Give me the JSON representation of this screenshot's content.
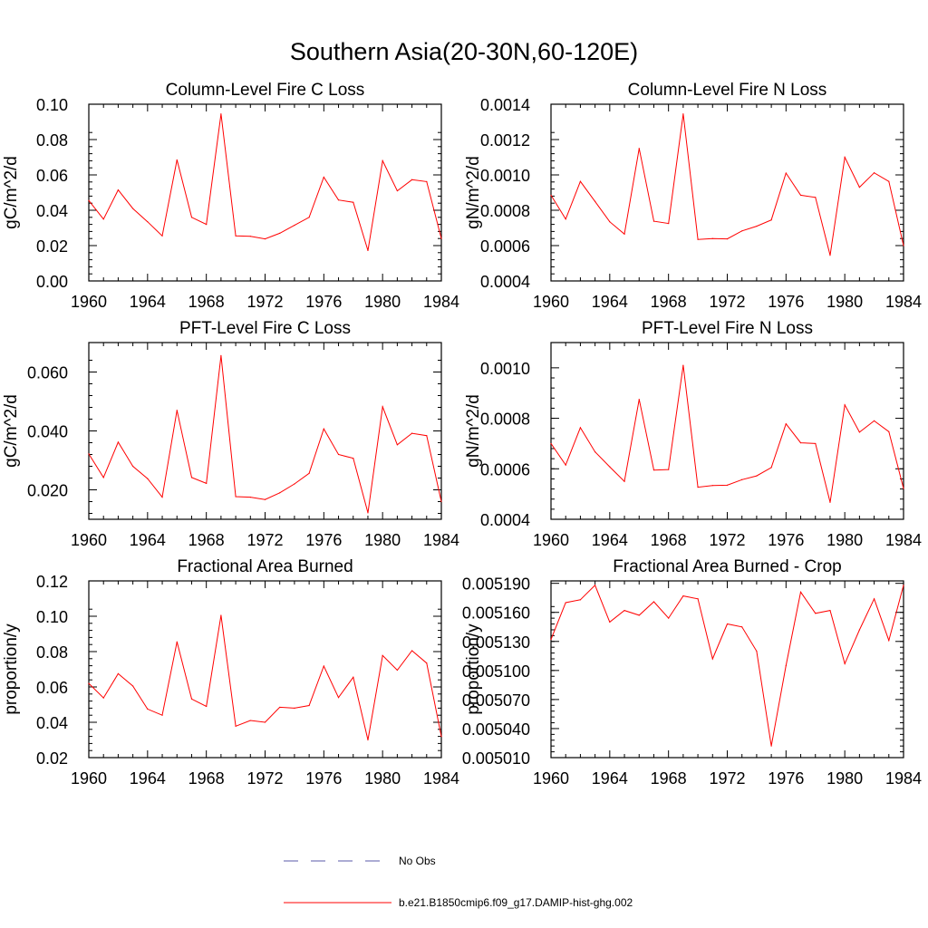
{
  "figure_title": "Southern Asia(20-30N,60-120E)",
  "legend": {
    "items": [
      {
        "label": "No Obs",
        "color": "#5a5aaa",
        "style": "dashed"
      },
      {
        "label": "b.e21.B1850cmip6.f09_g17.DAMIP-hist-ghg.002",
        "color": "#ff0000",
        "style": "solid"
      }
    ]
  },
  "chart_data": [
    {
      "type": "line",
      "title": "Column-Level Fire C Loss",
      "ylabel": "gC/m^2/d",
      "xlim": [
        1960,
        1984
      ],
      "ylim": [
        0,
        0.1
      ],
      "xticks": [
        "1960",
        "1964",
        "1968",
        "1972",
        "1976",
        "1980",
        "1984"
      ],
      "yticks": [
        "0.00",
        "0.02",
        "0.04",
        "0.06",
        "0.08",
        "0.10"
      ],
      "series": [
        {
          "color": "#ff0000",
          "x": [
            1960,
            1961,
            1962,
            1963,
            1964,
            1965,
            1966,
            1967,
            1968,
            1969,
            1970,
            1971,
            1972,
            1973,
            1974,
            1975,
            1976,
            1977,
            1978,
            1979,
            1980,
            1981,
            1982,
            1983,
            1984
          ],
          "y": [
            0.0455,
            0.035,
            0.0515,
            0.041,
            0.0335,
            0.0255,
            0.0685,
            0.036,
            0.032,
            0.0945,
            0.0255,
            0.0253,
            0.0238,
            0.027,
            0.0315,
            0.036,
            0.0587,
            0.0458,
            0.0445,
            0.0172,
            0.068,
            0.051,
            0.0573,
            0.0562,
            0.024
          ]
        }
      ]
    },
    {
      "type": "line",
      "title": "Column-Level Fire N Loss",
      "ylabel": "gN/m^2/d",
      "xlim": [
        1960,
        1984
      ],
      "ylim": [
        0.0004,
        0.0014
      ],
      "xticks": [
        "1960",
        "1964",
        "1968",
        "1972",
        "1976",
        "1980",
        "1984"
      ],
      "yticks": [
        "0.0004",
        "0.0006",
        "0.0008",
        "0.0010",
        "0.0012",
        "0.0014"
      ],
      "series": [
        {
          "color": "#ff0000",
          "x": [
            1960,
            1961,
            1962,
            1963,
            1964,
            1965,
            1966,
            1967,
            1968,
            1969,
            1970,
            1971,
            1972,
            1973,
            1974,
            1975,
            1976,
            1977,
            1978,
            1979,
            1980,
            1981,
            1982,
            1983,
            1984
          ],
          "y": [
            0.000885,
            0.00075,
            0.000963,
            0.00085,
            0.000735,
            0.000665,
            0.00115,
            0.000738,
            0.000725,
            0.001345,
            0.000635,
            0.00064,
            0.000638,
            0.000683,
            0.00071,
            0.000745,
            0.00101,
            0.000885,
            0.000873,
            0.000545,
            0.0011,
            0.00093,
            0.001012,
            0.000963,
            0.0006
          ]
        }
      ]
    },
    {
      "type": "line",
      "title": "PFT-Level Fire C Loss",
      "ylabel": "gC/m^2/d",
      "xlim": [
        1960,
        1984
      ],
      "ylim": [
        0.01,
        0.07
      ],
      "xticks": [
        "1960",
        "1964",
        "1968",
        "1972",
        "1976",
        "1980",
        "1984"
      ],
      "yticks": [
        "0.020",
        "0.040",
        "0.060"
      ],
      "series": [
        {
          "color": "#ff0000",
          "x": [
            1960,
            1961,
            1962,
            1963,
            1964,
            1965,
            1966,
            1967,
            1968,
            1969,
            1970,
            1971,
            1972,
            1973,
            1974,
            1975,
            1976,
            1977,
            1978,
            1979,
            1980,
            1981,
            1982,
            1983,
            1984
          ],
          "y": [
            0.0322,
            0.0242,
            0.0362,
            0.028,
            0.0238,
            0.0175,
            0.047,
            0.0242,
            0.0222,
            0.0656,
            0.0177,
            0.0175,
            0.0167,
            0.019,
            0.022,
            0.0256,
            0.0407,
            0.032,
            0.0307,
            0.0122,
            0.0482,
            0.0353,
            0.0392,
            0.0384,
            0.016
          ]
        }
      ]
    },
    {
      "type": "line",
      "title": "PFT-Level Fire N Loss",
      "ylabel": "gN/m^2/d",
      "xlim": [
        1960,
        1984
      ],
      "ylim": [
        0.0004,
        0.0011
      ],
      "xticks": [
        "1960",
        "1964",
        "1968",
        "1972",
        "1976",
        "1980",
        "1984"
      ],
      "yticks": [
        "0.0004",
        "0.0006",
        "0.0008",
        "0.0010"
      ],
      "series": [
        {
          "color": "#ff0000",
          "x": [
            1960,
            1961,
            1962,
            1963,
            1964,
            1965,
            1966,
            1967,
            1968,
            1969,
            1970,
            1971,
            1972,
            1973,
            1974,
            1975,
            1976,
            1977,
            1978,
            1979,
            1980,
            1981,
            1982,
            1983,
            1984
          ],
          "y": [
            0.0007,
            0.000615,
            0.000763,
            0.000667,
            0.000608,
            0.00055,
            0.000875,
            0.000595,
            0.000597,
            0.00101,
            0.000527,
            0.000534,
            0.000535,
            0.000557,
            0.000572,
            0.000605,
            0.000778,
            0.000703,
            0.0007,
            0.000467,
            0.000853,
            0.000745,
            0.00079,
            0.000747,
            0.000522
          ]
        }
      ]
    },
    {
      "type": "line",
      "title": "Fractional Area Burned",
      "ylabel": "proportion/y",
      "xlim": [
        1960,
        1984
      ],
      "ylim": [
        0.02,
        0.12
      ],
      "xticks": [
        "1960",
        "1964",
        "1968",
        "1972",
        "1976",
        "1980",
        "1984"
      ],
      "yticks": [
        "0.02",
        "0.04",
        "0.06",
        "0.08",
        "0.10",
        "0.12"
      ],
      "series": [
        {
          "color": "#ff0000",
          "x": [
            1960,
            1961,
            1962,
            1963,
            1964,
            1965,
            1966,
            1967,
            1968,
            1969,
            1970,
            1971,
            1972,
            1973,
            1974,
            1975,
            1976,
            1977,
            1978,
            1979,
            1980,
            1981,
            1982,
            1983,
            1984
          ],
          "y": [
            0.062,
            0.0538,
            0.0675,
            0.0605,
            0.0475,
            0.044,
            0.0855,
            0.0532,
            0.049,
            0.1005,
            0.0378,
            0.041,
            0.04,
            0.0485,
            0.048,
            0.0495,
            0.0718,
            0.054,
            0.0655,
            0.03,
            0.0778,
            0.0695,
            0.0805,
            0.0735,
            0.032
          ]
        }
      ]
    },
    {
      "type": "line",
      "title": "Fractional Area Burned - Crop",
      "ylabel": "proportion/y",
      "xlim": [
        1960,
        1984
      ],
      "ylim": [
        0.00501,
        0.0051925
      ],
      "xticks": [
        "1960",
        "1964",
        "1968",
        "1972",
        "1976",
        "1980",
        "1984"
      ],
      "yticks": [
        "0.005010",
        "0.005040",
        "0.005070",
        "0.005100",
        "0.005130",
        "0.005160",
        "0.005190"
      ],
      "series": [
        {
          "color": "#ff0000",
          "x": [
            1960,
            1961,
            1962,
            1963,
            1964,
            1965,
            1966,
            1967,
            1968,
            1969,
            1970,
            1971,
            1972,
            1973,
            1974,
            1975,
            1976,
            1977,
            1978,
            1979,
            1980,
            1981,
            1982,
            1983,
            1984
          ],
          "y": [
            0.005132,
            0.00517,
            0.005173,
            0.005188,
            0.00515,
            0.005162,
            0.005157,
            0.005171,
            0.005154,
            0.005177,
            0.005174,
            0.005112,
            0.005148,
            0.005145,
            0.00512,
            0.005022,
            0.005105,
            0.005181,
            0.005159,
            0.005162,
            0.005107,
            0.005142,
            0.005174,
            0.005131,
            0.005188
          ]
        }
      ]
    }
  ]
}
